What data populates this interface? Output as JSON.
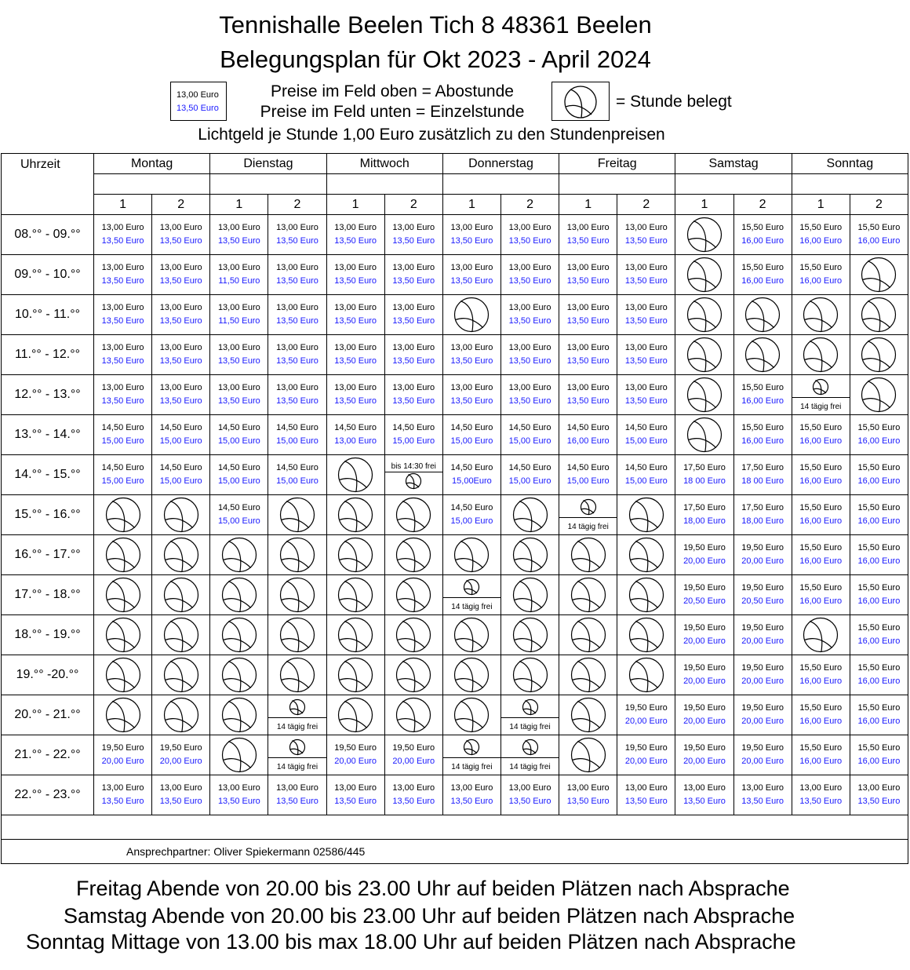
{
  "header": {
    "title_line1": "Tennishalle Beelen Tich 8 48361 Beelen",
    "title_line2": "Belegungsplan für Okt 2023 - April 2024",
    "legend_price_top": "13,00 Euro",
    "legend_price_bottom": "13,50 Euro",
    "legend_line1": "Preise im Feld oben = Abostunde",
    "legend_line2": "Preise im Feld unten = Einzelstunde",
    "legend_belegt": "= Stunde belegt",
    "lichtgeld": "Lichtgeld je Stunde 1,00 Euro zusätzlich zu den Stundenpreisen"
  },
  "table": {
    "uhrzeit_label": "Uhrzeit",
    "days": [
      "Montag",
      "Dienstag",
      "Mittwoch",
      "Donnerstag",
      "Freitag",
      "Samstag",
      "Sonntag"
    ],
    "court_numbers": [
      "1",
      "2",
      "1",
      "2",
      "1",
      "2",
      "1",
      "2",
      "1",
      "2",
      "1",
      "2",
      "1",
      "2"
    ],
    "contact": "Ansprechpartner: Oliver Spiekermann 02586/445",
    "rows": [
      {
        "time": "08.°° - 09.°°",
        "cells": [
          "13,00 Euro|13,50 Euro",
          "13,00 Euro|13,50 Euro",
          "13,00 Euro|13,50 Euro",
          "13,00 Euro|13,50 Euro",
          "13,00 Euro|13,50 Euro",
          "13,00 Euro|13,50 Euro",
          "13,00 Euro|13,50 Euro",
          "13,00 Euro|13,50 Euro",
          "13,00 Euro|13,50 Euro",
          "13,00 Euro|13,50 Euro",
          "B",
          "15,50 Euro|16,00 Euro",
          "15,50 Euro|16,00 Euro",
          "15,50 Euro|16,00 Euro"
        ]
      },
      {
        "time": "09.°° - 10.°°",
        "cells": [
          "13,00 Euro|13,50 Euro",
          "13,00 Euro|13,50 Euro",
          "13,00 Euro|11,50 Euro",
          "13,00 Euro|13,50 Euro",
          "13,00 Euro|13,50 Euro",
          "13,00 Euro|13,50 Euro",
          "13,00 Euro|13,50 Euro",
          "13,00 Euro|13,50 Euro",
          "13,00 Euro|13,50 Euro",
          "13,00 Euro|13,50 Euro",
          "B",
          "15,50 Euro|16,00 Euro",
          "15,50 Euro|16,00 Euro",
          "B"
        ]
      },
      {
        "time": "10.°° - 11.°°",
        "cells": [
          "13,00 Euro|13,50 Euro",
          "13,00 Euro|13,50 Euro",
          "13,00 Euro|11,50 Euro",
          "13,00 Euro|13,50 Euro",
          "13,00 Euro|13,50 Euro",
          "13,00 Euro|13,50 Euro",
          "B",
          "13,00 Euro|13,50 Euro",
          "13,00 Euro|13,50 Euro",
          "13,00 Euro|13,50 Euro",
          "B",
          "B",
          "B",
          "B"
        ]
      },
      {
        "time": "11.°° - 12.°°",
        "cells": [
          "13,00 Euro|13,50 Euro",
          "13,00 Euro|13,50 Euro",
          "13,00 Euro|13,50 Euro",
          "13,00 Euro|13,50 Euro",
          "13,00 Euro|13,50 Euro",
          "13,00 Euro|13,50 Euro",
          "13,00 Euro|13,50 Euro",
          "13,00 Euro|13,50 Euro",
          "13,00 Euro|13,50 Euro",
          "13,00 Euro|13,50 Euro",
          "B",
          "B",
          "B",
          "B"
        ]
      },
      {
        "time": "12.°° - 13.°°",
        "cells": [
          "13,00 Euro|13,50 Euro",
          "13,00 Euro|13,50 Euro",
          "13,00 Euro|13,50 Euro",
          "13,00 Euro|13,50 Euro",
          "13,00 Euro|13,50 Euro",
          "13,00 Euro|13,50 Euro",
          "13,00 Euro|13,50 Euro",
          "13,00 Euro|13,50 Euro",
          "13,00 Euro|13,50 Euro",
          "13,00 Euro|13,50 Euro",
          "B",
          "15,50 Euro|16,00 Euro",
          "S|14 tägig frei",
          "B"
        ]
      },
      {
        "time": "13.°° - 14.°°",
        "cells": [
          "14,50 Euro|15,00 Euro",
          "14,50 Euro|15,00 Euro",
          "14,50 Euro|15,00 Euro",
          "14,50 Euro|15,00 Euro",
          "14,50 Euro|13,00 Euro",
          "14,50 Euro|15,00 Euro",
          "14,50 Euro|15,00 Euro",
          "14,50 Euro|15,00 Euro",
          "14,50 Euro|16,00 Euro",
          "14,50 Euro|15,00 Euro",
          "B",
          "15,50 Euro|16,00 Euro",
          "15,50 Euro|16,00 Euro",
          "15,50 Euro|16,00 Euro"
        ]
      },
      {
        "time": "14.°° - 15.°°",
        "cells": [
          "14,50 Euro|15,00 Euro",
          "14,50 Euro|15,00 Euro",
          "14,50 Euro|15,00 Euro",
          "14,50 Euro|15,00 Euro",
          "B",
          "R|bis 14:30 frei",
          "14,50 Euro|15,00Euro",
          "14,50 Euro|15,00 Euro",
          "14,50 Euro|15,00 Euro",
          "14,50 Euro|15,00 Euro",
          "17,50 Euro|18 00 Euro",
          "17,50 Euro|18 00 Euro",
          "15,50 Euro|16,00 Euro",
          "15,50 Euro|16,00 Euro"
        ]
      },
      {
        "time": "15.°° - 16.°°",
        "cells": [
          "B",
          "B",
          "14,50 Euro|15,00 Euro",
          "B",
          "B",
          "B",
          "14,50 Euro|15,00 Euro",
          "B",
          "S|14 tägig frei",
          "B",
          "17,50 Euro|18,00 Euro",
          "17,50 Euro|18,00 Euro",
          "15,50 Euro|16,00 Euro",
          "15,50 Euro|16,00 Euro"
        ]
      },
      {
        "time": "16.°° - 17.°°",
        "cells": [
          "B",
          "B",
          "B",
          "B",
          "B",
          "B",
          "B",
          "B",
          "B",
          "B",
          "19,50 Euro|20,00 Euro",
          "19,50 Euro|20,00 Euro",
          "15,50 Euro|16,00 Euro",
          "15,50 Euro|16,00 Euro"
        ]
      },
      {
        "time": "17.°° - 18.°°",
        "cells": [
          "B",
          "B",
          "B",
          "B",
          "B",
          "B",
          "S|14 tägig frei",
          "B",
          "B",
          "B",
          "19,50 Euro|20,50 Euro",
          "19,50 Euro|20,50 Euro",
          "15,50 Euro|16,00 Euro",
          "15,50 Euro|16,00 Euro"
        ]
      },
      {
        "time": "18.°° - 19.°°",
        "cells": [
          "B",
          "B",
          "B",
          "B",
          "B",
          "B",
          "B",
          "B",
          "B",
          "B",
          "19,50 Euro|20,00 Euro",
          "19,50 Euro|20,00 Euro",
          "B",
          "15,50 Euro|16,00 Euro"
        ]
      },
      {
        "time": "19.°° -20.°°",
        "cells": [
          "B",
          "B",
          "B",
          "B",
          "B",
          "B",
          "B",
          "B",
          "B",
          "B",
          "19,50 Euro|20,00 Euro",
          "19,50 Euro|20,00 Euro",
          "15,50 Euro|16,00 Euro",
          "15,50 Euro|16,00 Euro"
        ]
      },
      {
        "time": "20.°° - 21.°°",
        "cells": [
          "B",
          "B",
          "B",
          "S|14 tägig frei",
          "B",
          "B",
          "B",
          "S|14 tägig frei",
          "B",
          "19,50 Euro|20,00 Euro",
          "19,50 Euro|20,00 Euro",
          "19,50 Euro|20,00 Euro",
          "15,50 Euro|16,00 Euro",
          "15,50 Euro|16,00 Euro"
        ]
      },
      {
        "time": "21.°° - 22.°°",
        "cells": [
          "19,50 Euro|20,00 Euro",
          "19,50 Euro|20,00 Euro",
          "B",
          "S|14 tägig frei",
          "19,50 Euro|20,00 Euro",
          "19,50 Euro|20,00 Euro",
          "S|14 tägig frei",
          "S|14 tägig frei",
          "B",
          "19,50 Euro|20,00 Euro",
          "19,50 Euro|20,00 Euro",
          "19,50 Euro|20,00 Euro",
          "15,50 Euro|16,00 Euro",
          "15,50 Euro|16,00 Euro"
        ]
      },
      {
        "time": "22.°° - 23.°°",
        "cells": [
          "13,00 Euro|13,50 Euro",
          "13,00 Euro|13,50 Euro",
          "13,00 Euro|13,50 Euro",
          "13,00 Euro|13,50 Euro",
          "13,00 Euro|13,50 Euro",
          "13,00 Euro|13,50 Euro",
          "13,00 Euro|13,50 Euro",
          "13,00 Euro|13,50 Euro",
          "13,00 Euro|13,50 Euro",
          "13,00 Euro|13,50 Euro",
          "13,00 Euro|13,50 Euro",
          "13,00 Euro|13,50 Euro",
          "13,00 Euro|13,50 Euro",
          "13,00 Euro|13,50 Euro"
        ]
      }
    ]
  },
  "footer": {
    "line1": "Freitag Abende von 20.00 bis 23.00 Uhr auf beiden Plätzen nach Absprache",
    "line2": "Samstag Abende von 20.00 bis 23.00 Uhr auf beiden Plätzen nach Absprache",
    "line3": "Sonntag Mittage von 13.00 bis max 18.00 Uhr auf beiden Plätzen nach Absprache"
  },
  "colors": {
    "einzelstunde_text": "#1a1aff",
    "border": "#000000"
  },
  "icons": {
    "belegt": "tennis-ball-icon"
  }
}
